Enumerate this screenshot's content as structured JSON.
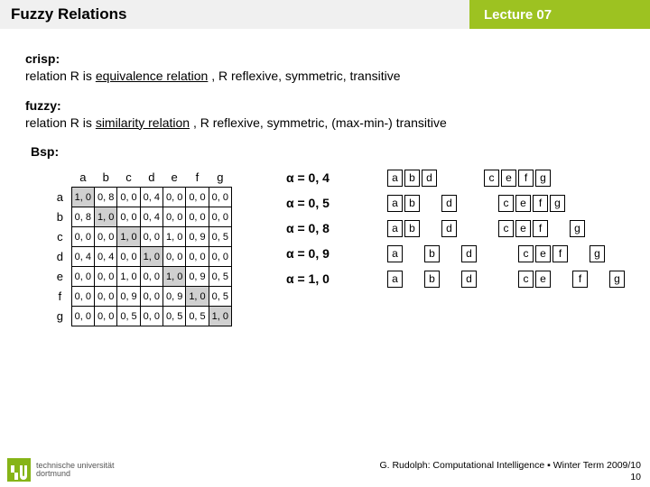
{
  "header": {
    "title": "Fuzzy Relations",
    "lecture": "Lecture 07"
  },
  "defs": {
    "crisp_term": "crisp:",
    "crisp_body_a": "relation R is ",
    "crisp_body_u": "equivalence relation",
    "crisp_body_b": " , R reflexive, symmetric, transitive",
    "fuzzy_term": "fuzzy:",
    "fuzzy_body_a": "relation R is ",
    "fuzzy_body_u": "similarity relation",
    "fuzzy_body_b": " , R reflexive, symmetric, (max-min-) transitive"
  },
  "bsp": "Bsp:",
  "matrix": {
    "cols": [
      "a",
      "b",
      "c",
      "d",
      "e",
      "f",
      "g"
    ],
    "rows": [
      "a",
      "b",
      "c",
      "d",
      "e",
      "f",
      "g"
    ],
    "data": [
      [
        "1, 0",
        "0, 8",
        "0, 0",
        "0, 4",
        "0, 0",
        "0, 0",
        "0, 0"
      ],
      [
        "0, 8",
        "1, 0",
        "0, 0",
        "0, 4",
        "0, 0",
        "0, 0",
        "0, 0"
      ],
      [
        "0, 0",
        "0, 0",
        "1, 0",
        "0, 0",
        "1, 0",
        "0, 9",
        "0, 5"
      ],
      [
        "0, 4",
        "0, 4",
        "0, 0",
        "1, 0",
        "0, 0",
        "0, 0",
        "0, 0"
      ],
      [
        "0, 0",
        "0, 0",
        "1, 0",
        "0, 0",
        "1, 0",
        "0, 9",
        "0, 5"
      ],
      [
        "0, 0",
        "0, 0",
        "0, 9",
        "0, 0",
        "0, 9",
        "1, 0",
        "0, 5"
      ],
      [
        "0, 0",
        "0, 0",
        "0, 5",
        "0, 0",
        "0, 5",
        "0, 5",
        "1, 0"
      ]
    ],
    "hi": [
      [
        0,
        0
      ],
      [
        1,
        1
      ],
      [
        2,
        2
      ],
      [
        3,
        3
      ],
      [
        4,
        4
      ],
      [
        5,
        5
      ],
      [
        6,
        6
      ]
    ]
  },
  "levels": [
    {
      "alpha": "α = 0, 4",
      "groups": [
        [
          "a",
          "b",
          "d"
        ],
        [
          "c",
          "e",
          "f",
          "g"
        ]
      ],
      "spacers": [
        "gap32",
        "gap4"
      ]
    },
    {
      "alpha": "α = 0, 5",
      "groups": [
        [
          "a",
          "b"
        ],
        [
          "d"
        ],
        [
          "c",
          "e",
          "f",
          "g"
        ]
      ],
      "spacers": [
        "gap4",
        "gap26",
        "gap4"
      ]
    },
    {
      "alpha": "α = 0, 8",
      "groups": [
        [
          "a",
          "b"
        ],
        [
          "d"
        ],
        [
          "c",
          "e",
          "f"
        ],
        [
          "g"
        ]
      ],
      "spacers": [
        "gap4",
        "gap26",
        "gap4",
        "gap20"
      ]
    },
    {
      "alpha": "α = 0, 9",
      "groups": [
        [
          "a"
        ],
        [
          "b"
        ],
        [
          "d"
        ],
        [
          "c",
          "e",
          "f"
        ],
        [
          "g"
        ]
      ],
      "spacers": [
        "gap4",
        "gap4",
        "gap26",
        "gap4",
        "gap20"
      ]
    },
    {
      "alpha": "α = 1, 0",
      "groups": [
        [
          "a"
        ],
        [
          "b"
        ],
        [
          "d"
        ],
        [
          "c",
          "e"
        ],
        [
          "f"
        ],
        [
          "g"
        ]
      ],
      "spacers": [
        "gap4",
        "gap4",
        "gap26",
        "gap4",
        "gap4",
        "gap20"
      ]
    }
  ],
  "footer": {
    "line1": "G. Rudolph: Computational Intelligence ▪ Winter Term 2009/10",
    "line2": "10"
  },
  "logo": {
    "l1": "technische universität",
    "l2": "dortmund"
  }
}
